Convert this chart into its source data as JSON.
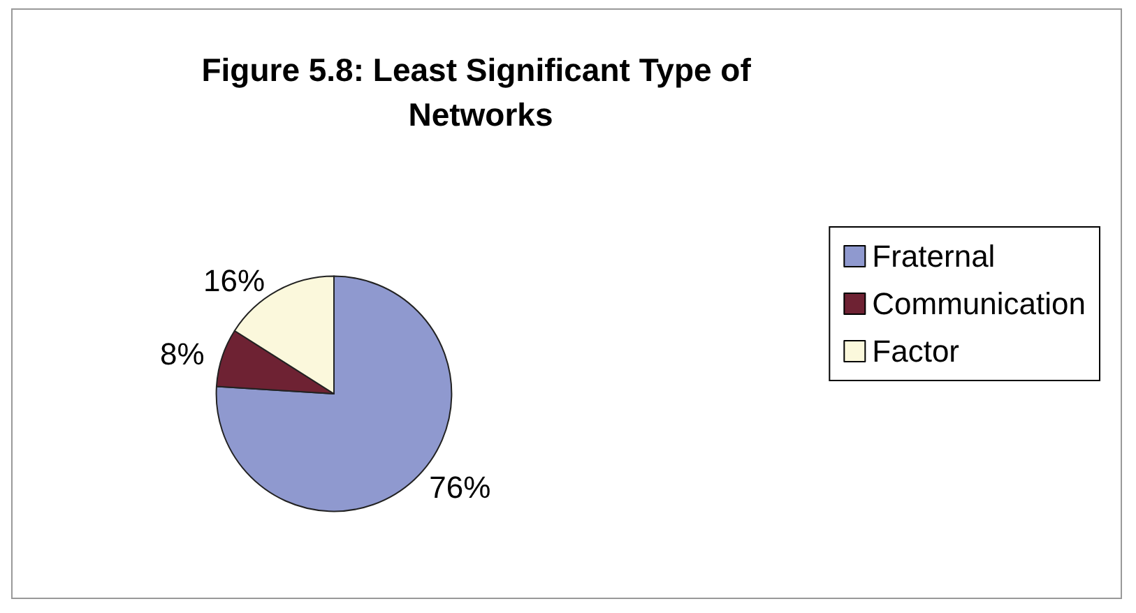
{
  "chart_data": {
    "type": "pie",
    "title": "Figure 5.8: Least Significant Type of Networks",
    "categories": [
      "Fraternal",
      "Communication",
      "Factor"
    ],
    "values": [
      76,
      8,
      16
    ],
    "colors": [
      "#8f99cf",
      "#6e2233",
      "#fbf8dc"
    ],
    "value_labels": [
      "76%",
      "8%",
      "16%"
    ],
    "legend": "right"
  }
}
